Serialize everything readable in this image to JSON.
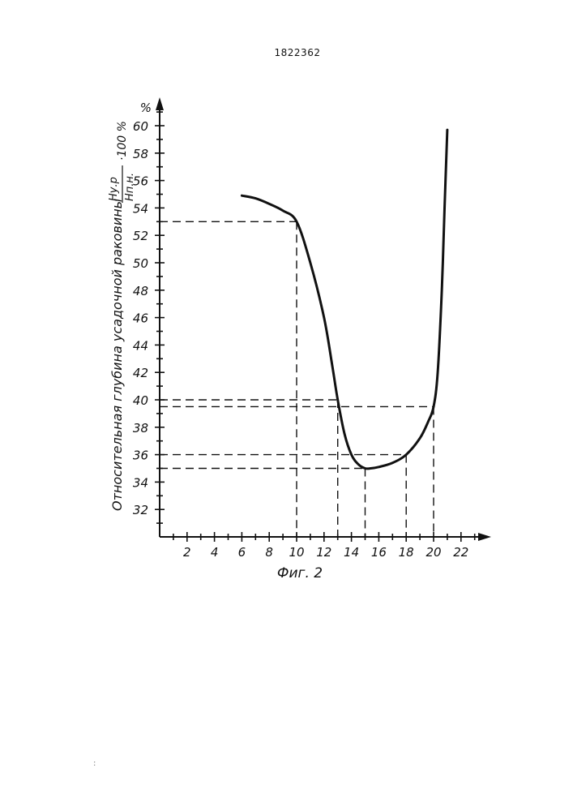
{
  "document": {
    "number": "1822362",
    "figure_caption": "Фиг. 2",
    "stray_mark": ":"
  },
  "chart_data": {
    "type": "line",
    "title": "",
    "xlabel": "",
    "ylabel": "Относительная глубина усадочной раковины",
    "ylabel_formula": {
      "numerator": "Hу.р",
      "denominator": "Hп.н.",
      "suffix": "·100 %"
    },
    "y_unit": "%",
    "xlim": [
      0,
      24
    ],
    "ylim": [
      30,
      61
    ],
    "x_ticks": [
      2,
      4,
      6,
      8,
      10,
      12,
      14,
      16,
      18,
      20,
      22
    ],
    "y_ticks": [
      32,
      34,
      36,
      38,
      40,
      42,
      44,
      46,
      48,
      50,
      52,
      54,
      56,
      58,
      60
    ],
    "grid": false,
    "colors": {
      "ink": "#111111",
      "background": "#ffffff"
    },
    "series": [
      {
        "values": [
          [
            6,
            54.9
          ],
          [
            7,
            54.7
          ],
          [
            8,
            54.3
          ],
          [
            9,
            53.8
          ],
          [
            10,
            53.0
          ],
          [
            11,
            50.0
          ],
          [
            12,
            46.0
          ],
          [
            12.6,
            42.5
          ],
          [
            13.0,
            40.0
          ],
          [
            13.5,
            37.5
          ],
          [
            14,
            36.0
          ],
          [
            14.5,
            35.3
          ],
          [
            15,
            35.0
          ],
          [
            15.4,
            35.0
          ],
          [
            16,
            35.1
          ],
          [
            17,
            35.4
          ],
          [
            18,
            36.0
          ],
          [
            19,
            37.2
          ],
          [
            19.6,
            38.4
          ],
          [
            20,
            39.5
          ],
          [
            20.3,
            42.0
          ],
          [
            20.6,
            48.0
          ],
          [
            20.8,
            54.0
          ],
          [
            21,
            59.7
          ]
        ]
      }
    ],
    "reference_points": [
      {
        "x": 10,
        "y": 53
      },
      {
        "x": 13,
        "y": 40
      },
      {
        "x": 15,
        "y": 35
      },
      {
        "x": 18,
        "y": 36
      },
      {
        "x": 20,
        "y": 39.5
      }
    ]
  }
}
